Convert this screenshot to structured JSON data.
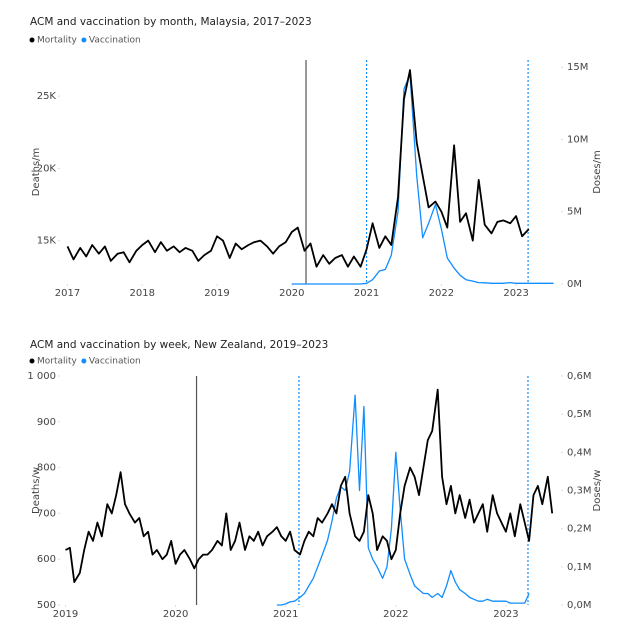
{
  "chart_data": [
    {
      "type": "line",
      "title": "ACM and vaccination by month, Malaysia, 2017–2023",
      "y_label": "Deaths/m",
      "y2_label": "Doses/m",
      "x": [
        2017.0,
        2017.08,
        2017.17,
        2017.25,
        2017.33,
        2017.42,
        2017.5,
        2017.58,
        2017.67,
        2017.75,
        2017.83,
        2017.92,
        2018.0,
        2018.08,
        2018.17,
        2018.25,
        2018.33,
        2018.42,
        2018.5,
        2018.58,
        2018.67,
        2018.75,
        2018.83,
        2018.92,
        2019.0,
        2019.08,
        2019.17,
        2019.25,
        2019.33,
        2019.42,
        2019.5,
        2019.58,
        2019.67,
        2019.75,
        2019.83,
        2019.92,
        2020.0,
        2020.08,
        2020.17,
        2020.25,
        2020.33,
        2020.42,
        2020.5,
        2020.58,
        2020.67,
        2020.75,
        2020.83,
        2020.92,
        2021.0,
        2021.08,
        2021.17,
        2021.25,
        2021.33,
        2021.42,
        2021.5,
        2021.58,
        2021.67,
        2021.75,
        2021.83,
        2021.92,
        2022.0,
        2022.08,
        2022.17,
        2022.25,
        2022.33,
        2022.42,
        2022.5,
        2022.58,
        2022.67,
        2022.75,
        2022.83,
        2022.92,
        2023.0,
        2023.08,
        2023.17,
        2023.25,
        2023.33,
        2023.42,
        2023.5
      ],
      "series": [
        {
          "name": "Mortality",
          "color": "#000000",
          "values": [
            14600,
            13700,
            14500,
            13900,
            14700,
            14100,
            14600,
            13600,
            14100,
            14200,
            13500,
            14300,
            14700,
            15000,
            14200,
            14900,
            14300,
            14600,
            14200,
            14500,
            14300,
            13600,
            14000,
            14300,
            15300,
            15000,
            13800,
            14800,
            14400,
            14700,
            14900,
            15000,
            14600,
            14100,
            14600,
            14900,
            15600,
            15900,
            14300,
            14800,
            13200,
            14000,
            13400,
            13800,
            14000,
            13200,
            13900,
            13200,
            14400,
            16200,
            14500,
            15300,
            14700,
            18000,
            24800,
            26800,
            21800,
            19500,
            17300,
            17700,
            17000,
            15900,
            21600,
            16300,
            16900,
            15000,
            19200,
            16100,
            15500,
            16300,
            16400,
            16200,
            16700,
            15300,
            15800,
            null,
            null,
            null,
            null
          ]
        },
        {
          "name": "Vaccination",
          "color": "#118dff",
          "axis": "y2",
          "values": [
            null,
            null,
            null,
            null,
            null,
            null,
            null,
            null,
            null,
            null,
            null,
            null,
            null,
            null,
            null,
            null,
            null,
            null,
            null,
            null,
            null,
            null,
            null,
            null,
            null,
            null,
            null,
            null,
            null,
            null,
            null,
            null,
            null,
            null,
            null,
            null,
            0,
            0,
            0,
            0,
            0,
            0,
            0,
            0,
            0,
            0,
            0,
            0,
            50000,
            300000,
            900000,
            1000000,
            2000000,
            5000000,
            13500000,
            14500000,
            7500000,
            3200000,
            4200000,
            5500000,
            3800000,
            1800000,
            1100000,
            600000,
            300000,
            200000,
            100000,
            80000,
            50000,
            50000,
            50000,
            100000,
            50000,
            50000,
            50000,
            50000,
            50000,
            50000,
            50000
          ]
        }
      ],
      "xlim": [
        2016.9,
        2023.6
      ],
      "xticks": [
        2017,
        2018,
        2019,
        2020,
        2021,
        2022,
        2023
      ],
      "ylim": [
        12000,
        27500
      ],
      "yticks": [
        {
          "value": 15000,
          "label": "15K"
        },
        {
          "value": 20000,
          "label": "20K"
        },
        {
          "value": 25000,
          "label": "25K"
        }
      ],
      "y2lim": [
        0,
        15500000
      ],
      "y2ticks": [
        {
          "value": 0,
          "label": "0M"
        },
        {
          "value": 5000000,
          "label": "5M"
        },
        {
          "value": 10000000,
          "label": "10M"
        },
        {
          "value": 15000000,
          "label": "15M"
        }
      ],
      "vlines": [
        {
          "x": 2020.19,
          "style": "solid",
          "color": "#555555"
        },
        {
          "x": 2021.0,
          "style": "dotted",
          "color": "#118dff"
        },
        {
          "x": 2023.16,
          "style": "dotted",
          "color": "#118dff"
        }
      ],
      "legend": "top-left",
      "grid": false
    },
    {
      "type": "line",
      "title": "ACM and vaccination by week, New Zealand, 2019–2023",
      "y_label": "Deaths/w",
      "y2_label": "Doses/w",
      "x": [
        2019.0,
        2019.04,
        2019.08,
        2019.13,
        2019.17,
        2019.21,
        2019.25,
        2019.29,
        2019.33,
        2019.38,
        2019.42,
        2019.46,
        2019.5,
        2019.54,
        2019.58,
        2019.63,
        2019.67,
        2019.71,
        2019.75,
        2019.79,
        2019.83,
        2019.88,
        2019.92,
        2019.96,
        2020.0,
        2020.04,
        2020.08,
        2020.13,
        2020.17,
        2020.21,
        2020.25,
        2020.29,
        2020.33,
        2020.38,
        2020.42,
        2020.46,
        2020.5,
        2020.54,
        2020.58,
        2020.63,
        2020.67,
        2020.71,
        2020.75,
        2020.79,
        2020.83,
        2020.88,
        2020.92,
        2020.96,
        2021.0,
        2021.04,
        2021.08,
        2021.13,
        2021.17,
        2021.21,
        2021.25,
        2021.29,
        2021.33,
        2021.38,
        2021.42,
        2021.46,
        2021.5,
        2021.54,
        2021.58,
        2021.63,
        2021.67,
        2021.71,
        2021.75,
        2021.79,
        2021.83,
        2021.88,
        2021.92,
        2021.96,
        2022.0,
        2022.04,
        2022.08,
        2022.13,
        2022.17,
        2022.21,
        2022.25,
        2022.29,
        2022.33,
        2022.38,
        2022.42,
        2022.46,
        2022.5,
        2022.54,
        2022.58,
        2022.63,
        2022.67,
        2022.71,
        2022.75,
        2022.79,
        2022.83,
        2022.88,
        2022.92,
        2022.96,
        2023.0,
        2023.04,
        2023.08,
        2023.13,
        2023.17,
        2023.21,
        2023.25,
        2023.29,
        2023.33,
        2023.38,
        2023.42
      ],
      "series": [
        {
          "name": "Mortality",
          "color": "#000000",
          "values": [
            620,
            625,
            550,
            570,
            620,
            660,
            640,
            680,
            650,
            720,
            700,
            740,
            790,
            720,
            700,
            680,
            690,
            650,
            660,
            610,
            620,
            600,
            610,
            640,
            590,
            610,
            620,
            600,
            580,
            600,
            610,
            610,
            620,
            640,
            630,
            700,
            620,
            640,
            680,
            620,
            650,
            640,
            660,
            630,
            650,
            660,
            670,
            650,
            640,
            660,
            620,
            610,
            640,
            660,
            650,
            690,
            680,
            700,
            720,
            700,
            760,
            780,
            700,
            650,
            640,
            660,
            740,
            700,
            620,
            650,
            640,
            600,
            620,
            700,
            760,
            800,
            780,
            740,
            800,
            860,
            880,
            970,
            780,
            720,
            760,
            700,
            740,
            690,
            730,
            680,
            700,
            720,
            660,
            740,
            700,
            680,
            660,
            700,
            650,
            720,
            680,
            640,
            740,
            760,
            720,
            780,
            700
          ]
        },
        {
          "name": "Vaccination",
          "color": "#118dff",
          "axis": "y2",
          "values": [
            null,
            null,
            null,
            null,
            null,
            null,
            null,
            null,
            null,
            null,
            null,
            null,
            null,
            null,
            null,
            null,
            null,
            null,
            null,
            null,
            null,
            null,
            null,
            null,
            null,
            null,
            null,
            null,
            null,
            null,
            null,
            null,
            null,
            null,
            null,
            null,
            null,
            null,
            null,
            null,
            null,
            null,
            null,
            null,
            null,
            null,
            0,
            0,
            3000,
            8000,
            10000,
            20000,
            30000,
            50000,
            70000,
            100000,
            130000,
            170000,
            220000,
            280000,
            310000,
            300000,
            350000,
            550000,
            300000,
            520000,
            150000,
            120000,
            100000,
            70000,
            100000,
            200000,
            400000,
            250000,
            120000,
            80000,
            50000,
            40000,
            30000,
            30000,
            20000,
            30000,
            20000,
            50000,
            90000,
            60000,
            40000,
            30000,
            20000,
            15000,
            10000,
            10000,
            15000,
            10000,
            10000,
            10000,
            10000,
            5000,
            5000,
            5000,
            5000,
            30000,
            null,
            null,
            null,
            null,
            null
          ]
        }
      ],
      "xlim": [
        2018.95,
        2023.5
      ],
      "xticks": [
        2019,
        2020,
        2021,
        2022,
        2023
      ],
      "ylim": [
        500,
        1000
      ],
      "yticks": [
        500,
        600,
        700,
        800,
        900,
        {
          "value": 1000,
          "label": "1 000"
        }
      ],
      "y2lim": [
        0,
        600000
      ],
      "y2ticks": [
        {
          "value": 0,
          "label": "0,0M"
        },
        {
          "value": 100000,
          "label": "0,1M"
        },
        {
          "value": 200000,
          "label": "0,2M"
        },
        {
          "value": 300000,
          "label": "0,3M"
        },
        {
          "value": 400000,
          "label": "0,4M"
        },
        {
          "value": 500000,
          "label": "0,5M"
        },
        {
          "value": 600000,
          "label": "0,6M"
        }
      ],
      "vlines": [
        {
          "x": 2020.19,
          "style": "solid",
          "color": "#555555"
        },
        {
          "x": 2021.12,
          "style": "dotted",
          "color": "#118dff"
        },
        {
          "x": 2023.2,
          "style": "dotted",
          "color": "#118dff"
        }
      ],
      "legend": "top-left",
      "grid": false
    }
  ]
}
